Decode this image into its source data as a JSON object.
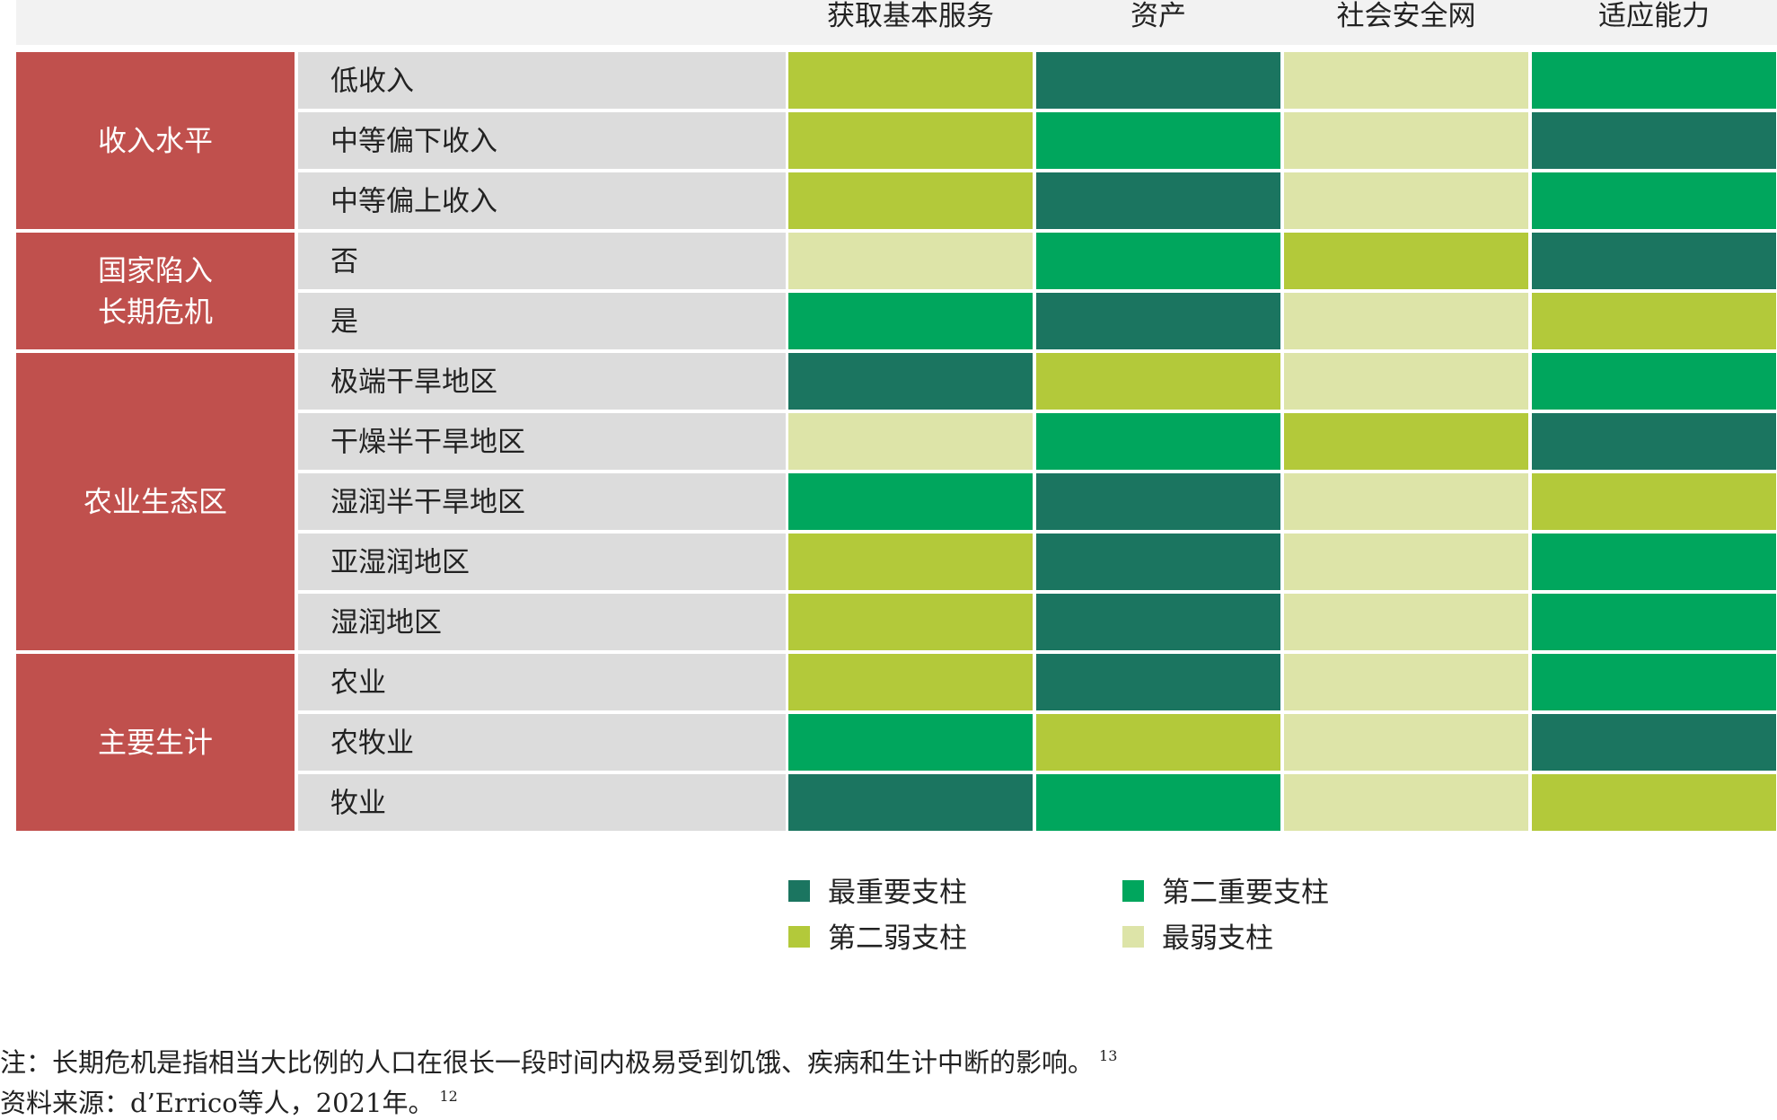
{
  "colors": {
    "group_bg": "#c0504d",
    "label_bg": "#dcdcdc",
    "header_strip": "#f2f2f2",
    "most_important": "#1b7560",
    "second_most_important": "#00a65d",
    "second_weakest": "#b3c93a",
    "weakest": "#dde4a8"
  },
  "chart_data": {
    "type": "heatmap",
    "columns": [
      "获取基本服务",
      "资产",
      "社会安全网",
      "适应能力"
    ],
    "groups": [
      {
        "label": [
          "收入水平"
        ],
        "rows": [
          {
            "label": "低收入",
            "values": [
              "second_weakest",
              "most_important",
              "weakest",
              "second_most_important"
            ]
          },
          {
            "label": "中等偏下收入",
            "values": [
              "second_weakest",
              "second_most_important",
              "weakest",
              "most_important"
            ]
          },
          {
            "label": "中等偏上收入",
            "values": [
              "second_weakest",
              "most_important",
              "weakest",
              "second_most_important"
            ]
          }
        ]
      },
      {
        "label": [
          "国家陷入",
          "长期危机"
        ],
        "rows": [
          {
            "label": "否",
            "values": [
              "weakest",
              "second_most_important",
              "second_weakest",
              "most_important"
            ]
          },
          {
            "label": "是",
            "values": [
              "second_most_important",
              "most_important",
              "weakest",
              "second_weakest"
            ]
          }
        ]
      },
      {
        "label": [
          "农业生态区"
        ],
        "rows": [
          {
            "label": "极端干旱地区",
            "values": [
              "most_important",
              "second_weakest",
              "weakest",
              "second_most_important"
            ]
          },
          {
            "label": "干燥半干旱地区",
            "values": [
              "weakest",
              "second_most_important",
              "second_weakest",
              "most_important"
            ]
          },
          {
            "label": "湿润半干旱地区",
            "values": [
              "second_most_important",
              "most_important",
              "weakest",
              "second_weakest"
            ]
          },
          {
            "label": "亚湿润地区",
            "values": [
              "second_weakest",
              "most_important",
              "weakest",
              "second_most_important"
            ]
          },
          {
            "label": "湿润地区",
            "values": [
              "second_weakest",
              "most_important",
              "weakest",
              "second_most_important"
            ]
          }
        ]
      },
      {
        "label": [
          "主要生计"
        ],
        "rows": [
          {
            "label": "农业",
            "values": [
              "second_weakest",
              "most_important",
              "weakest",
              "second_most_important"
            ]
          },
          {
            "label": "农牧业",
            "values": [
              "second_most_important",
              "second_weakest",
              "weakest",
              "most_important"
            ]
          },
          {
            "label": "牧业",
            "values": [
              "most_important",
              "second_most_important",
              "weakest",
              "second_weakest"
            ]
          }
        ]
      }
    ],
    "legend": [
      {
        "key": "most_important",
        "label": "最重要支柱"
      },
      {
        "key": "second_most_important",
        "label": "第二重要支柱"
      },
      {
        "key": "second_weakest",
        "label": "第二弱支柱"
      },
      {
        "key": "weakest",
        "label": "最弱支柱"
      }
    ]
  },
  "notes": {
    "note_text": "注：长期危机是指相当大比例的人口在很长一段时间内极易受到饥饿、疾病和生计中断的影响。",
    "note_ref": "13",
    "source_text": "资料来源：d’Errico等人，2021年。",
    "source_ref": "12"
  }
}
